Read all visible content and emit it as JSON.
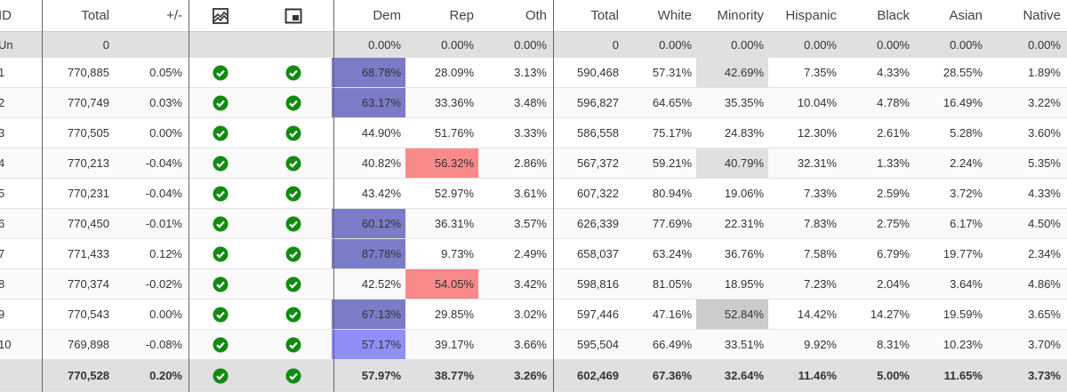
{
  "table": {
    "columns": {
      "id": "ID",
      "total": "Total",
      "change": "+/-",
      "dem": "Dem",
      "rep": "Rep",
      "oth": "Oth",
      "vap": "Total",
      "white": "White",
      "minority": "Minority",
      "hispanic": "Hispanic",
      "black": "Black",
      "asian": "Asian",
      "native": "Native"
    },
    "rows": [
      {
        "id": "Un",
        "total": "0",
        "dem": "0.00%",
        "rep": "0.00%",
        "oth": "0.00%",
        "vap": "0",
        "white": "0.00%",
        "minority": "0.00%",
        "hispanic": "0.00%",
        "black": "0.00%",
        "asian": "0.00%",
        "native": "0.00%"
      },
      {
        "id": "1",
        "total": "770,885",
        "change": "0.05%",
        "dem": "68.78%",
        "rep": "28.09%",
        "oth": "3.13%",
        "vap": "590,468",
        "white": "57.31%",
        "minority": "42.69%",
        "hispanic": "7.35%",
        "black": "4.33%",
        "asian": "28.55%",
        "native": "1.89%",
        "checks": true,
        "fill": {
          "dem": "#7b7bc8",
          "minority": "#e0e0e0"
        }
      },
      {
        "id": "2",
        "total": "770,749",
        "change": "0.03%",
        "dem": "63.17%",
        "rep": "33.36%",
        "oth": "3.48%",
        "vap": "596,827",
        "white": "64.65%",
        "minority": "35.35%",
        "hispanic": "10.04%",
        "black": "4.78%",
        "asian": "16.49%",
        "native": "3.22%",
        "checks": true,
        "fill": {
          "dem": "#7b7bc8"
        }
      },
      {
        "id": "3",
        "total": "770,505",
        "change": "0.00%",
        "dem": "44.90%",
        "rep": "51.76%",
        "oth": "3.33%",
        "vap": "586,558",
        "white": "75.17%",
        "minority": "24.83%",
        "hispanic": "12.30%",
        "black": "2.61%",
        "asian": "5.28%",
        "native": "3.60%",
        "checks": true
      },
      {
        "id": "4",
        "total": "770,213",
        "change": "-0.04%",
        "dem": "40.82%",
        "rep": "56.32%",
        "oth": "2.86%",
        "vap": "567,372",
        "white": "59.21%",
        "minority": "40.79%",
        "hispanic": "32.31%",
        "black": "1.33%",
        "asian": "2.24%",
        "native": "5.35%",
        "checks": true,
        "fill": {
          "rep": "#f88a8a",
          "minority": "#e0e0e0"
        }
      },
      {
        "id": "5",
        "total": "770,231",
        "change": "-0.04%",
        "dem": "43.42%",
        "rep": "52.97%",
        "oth": "3.61%",
        "vap": "607,322",
        "white": "80.94%",
        "minority": "19.06%",
        "hispanic": "7.33%",
        "black": "2.59%",
        "asian": "3.72%",
        "native": "4.33%",
        "checks": true
      },
      {
        "id": "6",
        "total": "770,450",
        "change": "-0.01%",
        "dem": "60.12%",
        "rep": "36.31%",
        "oth": "3.57%",
        "vap": "626,339",
        "white": "77.69%",
        "minority": "22.31%",
        "hispanic": "7.83%",
        "black": "2.75%",
        "asian": "6.17%",
        "native": "4.50%",
        "checks": true,
        "fill": {
          "dem": "#7b7bc8"
        }
      },
      {
        "id": "7",
        "total": "771,433",
        "change": "0.12%",
        "dem": "87.78%",
        "rep": "9.73%",
        "oth": "2.49%",
        "vap": "658,037",
        "white": "63.24%",
        "minority": "36.76%",
        "hispanic": "7.58%",
        "black": "6.79%",
        "asian": "19.77%",
        "native": "2.34%",
        "checks": true,
        "fill": {
          "dem": "#7b7bc8"
        }
      },
      {
        "id": "8",
        "total": "770,374",
        "change": "-0.02%",
        "dem": "42.52%",
        "rep": "54.05%",
        "oth": "3.42%",
        "vap": "598,816",
        "white": "81.05%",
        "minority": "18.95%",
        "hispanic": "7.23%",
        "black": "2.04%",
        "asian": "3.64%",
        "native": "4.86%",
        "checks": true,
        "fill": {
          "rep": "#f88a8a"
        }
      },
      {
        "id": "9",
        "total": "770,543",
        "change": "0.00%",
        "dem": "67.13%",
        "rep": "29.85%",
        "oth": "3.02%",
        "vap": "597,446",
        "white": "47.16%",
        "minority": "52.84%",
        "hispanic": "14.42%",
        "black": "14.27%",
        "asian": "19.59%",
        "native": "3.65%",
        "checks": true,
        "fill": {
          "dem": "#7b7bc8",
          "minority": "#cccccc"
        }
      },
      {
        "id": "10",
        "total": "769,898",
        "change": "-0.08%",
        "dem": "57.17%",
        "rep": "39.17%",
        "oth": "3.66%",
        "vap": "595,504",
        "white": "66.49%",
        "minority": "33.51%",
        "hispanic": "9.92%",
        "black": "8.31%",
        "asian": "10.23%",
        "native": "3.70%",
        "checks": true,
        "fill": {
          "dem": "#8f8ff5"
        }
      },
      {
        "total": "770,528",
        "change": "0.20%",
        "dem": "57.97%",
        "rep": "38.77%",
        "oth": "3.26%",
        "vap": "602,469",
        "white": "67.36%",
        "minority": "32.64%",
        "hispanic": "11.46%",
        "black": "5.00%",
        "asian": "11.65%",
        "native": "3.73%",
        "checks": true,
        "bold": true
      }
    ]
  }
}
